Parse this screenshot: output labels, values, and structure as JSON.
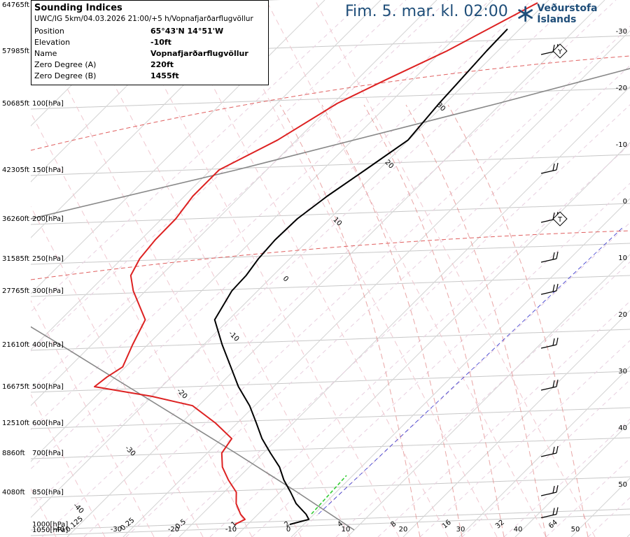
{
  "header": {
    "title": "Fim. 5. mar. kl. 02:00",
    "brand": "Veðurstofa Íslands",
    "brand_icon": "snowflake-logo-icon"
  },
  "info": {
    "title": "Sounding Indices",
    "subtitle": "UWC/IG 5km/04.03.2026 21:00/+5 h/Vopnafjarðarflugvöllur",
    "rows": [
      {
        "key": "Position",
        "value": "65°43'N 14°51'W"
      },
      {
        "key": "Elevation",
        "value": "-10ft"
      },
      {
        "key": "Name",
        "value": "Vopnafjarðarflugvöllur"
      },
      {
        "key": "Zero Degree (A)",
        "value": "220ft"
      },
      {
        "key": "Zero Degree (B)",
        "value": "1455ft"
      }
    ]
  },
  "colors": {
    "temperature": "#000000",
    "dewpoint": "#dd2222",
    "parcel": "#888888",
    "brand": "#1f4e79",
    "isotherm_dashed": "#e08080",
    "dry_adiabat": "#bbbbbb",
    "freezing_line": "#3333cc",
    "parcel_lift": "#33cc33"
  },
  "chart_data": {
    "type": "skew-t",
    "pressure_levels": [
      {
        "hpa": 1050,
        "label": "1050[hPa]"
      },
      {
        "hpa": 1000,
        "label": "1000[hPa]"
      },
      {
        "hpa": 850,
        "label": "850[hPa]",
        "altitude": "4080ft"
      },
      {
        "hpa": 700,
        "label": "700[hPa]",
        "altitude": "8860ft"
      },
      {
        "hpa": 600,
        "label": "600[hPa]",
        "altitude": "12510ft"
      },
      {
        "hpa": 500,
        "label": "500[hPa]",
        "altitude": "16675ft"
      },
      {
        "hpa": 400,
        "label": "400[hPa]",
        "altitude": "21610ft"
      },
      {
        "hpa": 300,
        "label": "300[hPa]",
        "altitude": "27765ft"
      },
      {
        "hpa": 250,
        "label": "250[hPa]",
        "altitude": "31585ft"
      },
      {
        "hpa": 200,
        "label": "200[hPa]",
        "altitude": "36260ft"
      },
      {
        "hpa": 150,
        "label": "150[hPa]",
        "altitude": "42305ft"
      },
      {
        "hpa": 100,
        "label": "100[hPa]",
        "altitude": "50685ft"
      },
      {
        "hpa": 70,
        "altitude": "57985ft"
      },
      {
        "hpa": 50,
        "altitude": "64765ft"
      }
    ],
    "x_bottom_labels": [
      "-40",
      "-30",
      "-20",
      "-10",
      "0",
      "10",
      "20",
      "30",
      "40",
      "50"
    ],
    "mixing_ratio_labels": [
      "0.125",
      "0.25",
      "0.5",
      "1",
      "2",
      "4",
      "8",
      "16",
      "32",
      "64"
    ],
    "right_axis_labels": [
      "-30",
      "-20",
      "-10",
      "0",
      "10",
      "20",
      "30",
      "40",
      "50"
    ],
    "isotherm_labels": [
      "30",
      "20",
      "10",
      "0",
      "-10",
      "-20",
      "-30",
      "-40"
    ],
    "temperature": [
      {
        "p": 1000,
        "t": -2.5
      },
      {
        "p": 975,
        "t": 0.0
      },
      {
        "p": 950,
        "t": -1.4
      },
      {
        "p": 900,
        "t": -5.1
      },
      {
        "p": 850,
        "t": -8.1
      },
      {
        "p": 800,
        "t": -11.5
      },
      {
        "p": 750,
        "t": -14.6
      },
      {
        "p": 700,
        "t": -18.7
      },
      {
        "p": 650,
        "t": -22.8
      },
      {
        "p": 600,
        "t": -26.6
      },
      {
        "p": 550,
        "t": -30.9
      },
      {
        "p": 500,
        "t": -36.3
      },
      {
        "p": 450,
        "t": -41.2
      },
      {
        "p": 400,
        "t": -46.7
      },
      {
        "p": 350,
        "t": -52.5
      },
      {
        "p": 300,
        "t": -54.6
      },
      {
        "p": 275,
        "t": -54.8
      },
      {
        "p": 250,
        "t": -55.6
      },
      {
        "p": 225,
        "t": -56.0
      },
      {
        "p": 200,
        "t": -55.8
      },
      {
        "p": 175,
        "t": -54.5
      },
      {
        "p": 150,
        "t": -52.4
      },
      {
        "p": 125,
        "t": -50.1
      },
      {
        "p": 100,
        "t": -51.1
      },
      {
        "p": 85,
        "t": -51.5
      },
      {
        "p": 70,
        "t": -52.0
      },
      {
        "p": 60,
        "t": -52.2
      }
    ],
    "dewpoint": [
      {
        "p": 1000,
        "t": -12.3
      },
      {
        "p": 975,
        "t": -11.4
      },
      {
        "p": 950,
        "t": -13.1
      },
      {
        "p": 900,
        "t": -15.8
      },
      {
        "p": 850,
        "t": -17.8
      },
      {
        "p": 800,
        "t": -21.4
      },
      {
        "p": 750,
        "t": -24.8
      },
      {
        "p": 700,
        "t": -27.4
      },
      {
        "p": 650,
        "t": -28.2
      },
      {
        "p": 600,
        "t": -33.9
      },
      {
        "p": 550,
        "t": -41.1
      },
      {
        "p": 525,
        "t": -50.0
      },
      {
        "p": 500,
        "t": -62.0
      },
      {
        "p": 475,
        "t": -61.5
      },
      {
        "p": 450,
        "t": -60.5
      },
      {
        "p": 400,
        "t": -62.7
      },
      {
        "p": 350,
        "t": -64.9
      },
      {
        "p": 300,
        "t": -72.2
      },
      {
        "p": 275,
        "t": -75.4
      },
      {
        "p": 250,
        "t": -76.8
      },
      {
        "p": 225,
        "t": -77.4
      },
      {
        "p": 200,
        "t": -77.5
      },
      {
        "p": 175,
        "t": -78.5
      },
      {
        "p": 150,
        "t": -78.5
      },
      {
        "p": 125,
        "t": -73.4
      },
      {
        "p": 100,
        "t": -69.3
      },
      {
        "p": 85,
        "t": -64.8
      },
      {
        "p": 70,
        "t": -59.1
      },
      {
        "p": 50,
        "t": -51.5
      }
    ],
    "parcel": [
      {
        "p": 1050,
        "t": 10.0
      },
      {
        "p": 850,
        "t": -6.9
      },
      {
        "p": 700,
        "t": -24.9
      },
      {
        "p": 500,
        "t": -56.0
      },
      {
        "p": 400,
        "t": -75.6
      },
      {
        "p": 300,
        "t": -101.1
      },
      {
        "p": 200,
        "t": -103.4
      },
      {
        "p": 150,
        "t": -75.4
      },
      {
        "p": 100,
        "t": -40.6
      },
      {
        "p": 60,
        "t": -3.6
      }
    ],
    "wind_barbs": [
      {
        "p": 70,
        "marker": "Y"
      },
      {
        "p": 200,
        "marker": "T"
      }
    ]
  }
}
